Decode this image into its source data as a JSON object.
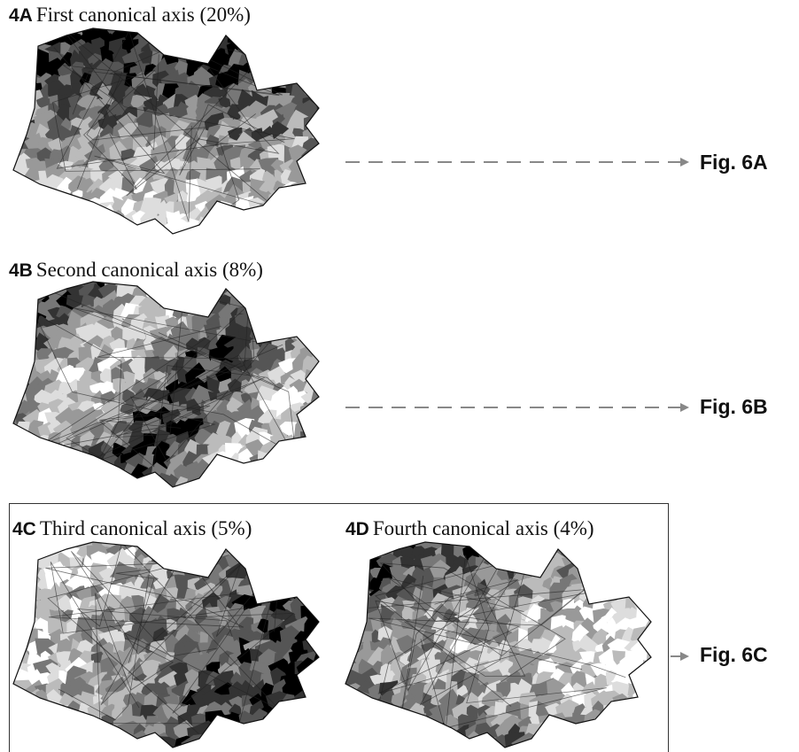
{
  "rows": [
    {
      "panels": [
        {
          "label": "4A",
          "title": "First canonical axis (20%)"
        }
      ],
      "ref": "Fig. 6A"
    },
    {
      "panels": [
        {
          "label": "4B",
          "title": "Second canonical axis (8%)"
        }
      ],
      "ref": "Fig. 6B"
    },
    {
      "panels": [
        {
          "label": "4C",
          "title": "Third canonical axis (5%)"
        },
        {
          "label": "4D",
          "title": "Fourth canonical axis (4%)"
        }
      ],
      "ref": "Fig. 6C"
    }
  ]
}
